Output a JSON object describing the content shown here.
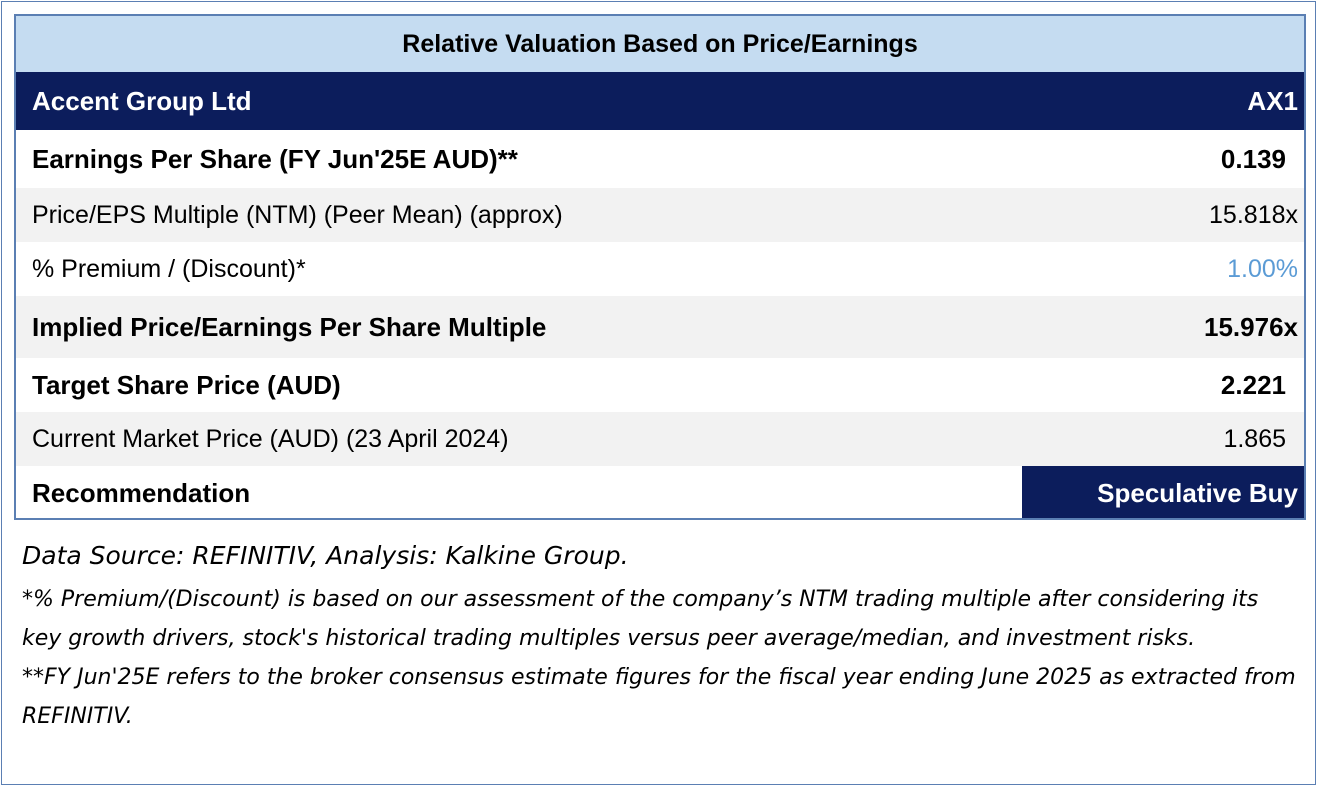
{
  "table": {
    "title": "Relative Valuation Based on Price/Earnings",
    "company": "Accent Group Ltd",
    "ticker": "AX1",
    "rows": [
      {
        "label": "Earnings Per Share (FY Jun'25E AUD)**",
        "value": "0.139"
      },
      {
        "label": "Price/EPS Multiple (NTM) (Peer Mean) (approx)",
        "value": "15.818x"
      },
      {
        "label": "% Premium / (Discount)*",
        "value": "1.00%"
      },
      {
        "label": "Implied Price/Earnings Per Share Multiple",
        "value": "15.976x"
      },
      {
        "label": "Target Share Price (AUD)",
        "value": "2.221"
      },
      {
        "label": "Current Market Price (AUD) (23 April 2024)",
        "value": "1.865"
      }
    ],
    "recommendation_label": "Recommendation",
    "recommendation_value": "Speculative Buy"
  },
  "notes": {
    "source": "Data Source: REFINITIV, Analysis: Kalkine Group.",
    "note1": "*% Premium/(Discount) is based on our assessment of the company’s NTM trading multiple after considering its key growth drivers, stock's historical trading multiples versus peer average/median, and investment risks.",
    "note2": "**FY Jun'25E refers to the broker consensus estimate figures for the fiscal year ending June 2025 as extracted from REFINITIV."
  },
  "colors": {
    "header_navy": "#0c1d5c",
    "title_band": "#c5dcf1",
    "premium_value": "#5b9bd5",
    "border": "#5b7fb3"
  }
}
